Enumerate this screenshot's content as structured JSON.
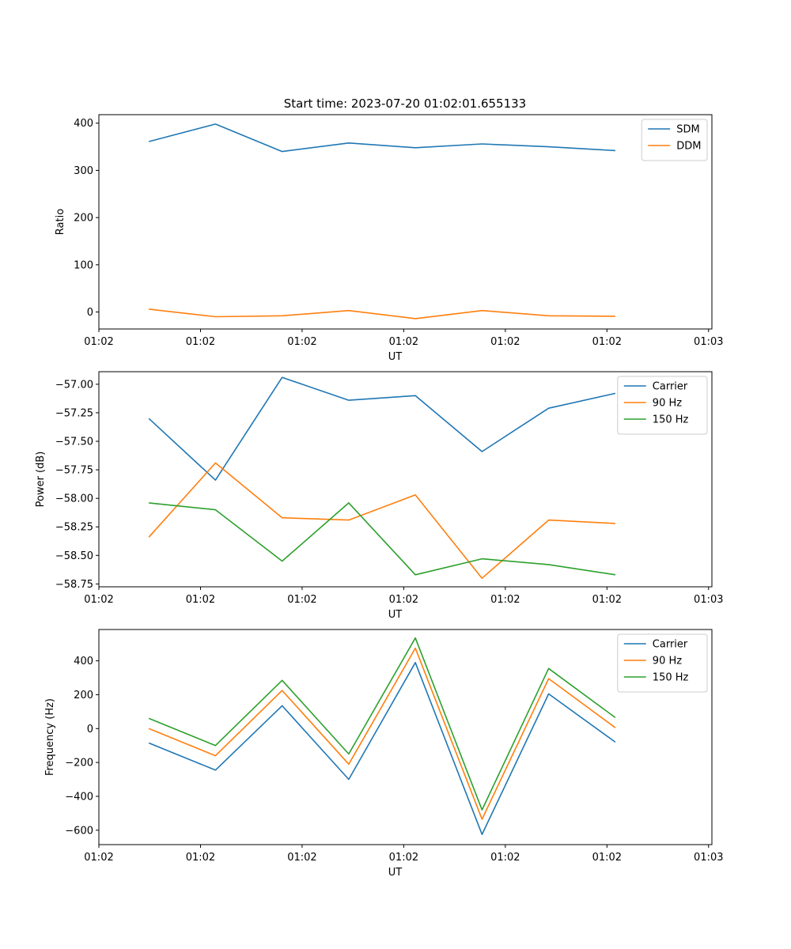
{
  "title": "Start time: 2023-07-20 01:02:01.655133",
  "chart_data": [
    {
      "type": "line",
      "xlabel": "UT",
      "ylabel": "Ratio",
      "x_index_range": [
        -0.75,
        8.45
      ],
      "x_tick_positions": [
        -0.75,
        0.775,
        2.3,
        3.825,
        5.35,
        6.875,
        8.4
      ],
      "x_tick_labels": [
        "01:02",
        "01:02",
        "01:02",
        "01:02",
        "01:02",
        "01:02",
        "01:03"
      ],
      "ylim": [
        -36,
        418
      ],
      "y_ticks": [
        0,
        100,
        200,
        300,
        400
      ],
      "y_tick_labels": [
        "0",
        "100",
        "200",
        "300",
        "400"
      ],
      "legend": "top-right",
      "series": [
        {
          "name": "SDM",
          "color": "#1f77b4",
          "values": [
            361,
            398,
            340,
            358,
            348,
            356,
            350,
            342
          ]
        },
        {
          "name": "DDM",
          "color": "#ff7f0e",
          "values": [
            6,
            -10,
            -8,
            3,
            -14,
            3,
            -8,
            -9
          ]
        }
      ]
    },
    {
      "type": "line",
      "xlabel": "UT",
      "ylabel": "Power (dB)",
      "x_index_range": [
        -0.75,
        8.45
      ],
      "x_tick_positions": [
        -0.75,
        0.775,
        2.3,
        3.825,
        5.35,
        6.875,
        8.4
      ],
      "x_tick_labels": [
        "01:02",
        "01:02",
        "01:02",
        "01:02",
        "01:02",
        "01:02",
        "01:03"
      ],
      "ylim": [
        -58.775,
        -56.89
      ],
      "y_ticks": [
        -58.75,
        -58.5,
        -58.25,
        -58.0,
        -57.75,
        -57.5,
        -57.25,
        -57.0
      ],
      "y_tick_labels": [
        "−58.75",
        "−58.50",
        "−58.25",
        "−58.00",
        "−57.75",
        "−57.50",
        "−57.25",
        "−57.00"
      ],
      "legend": "top-right",
      "series": [
        {
          "name": "Carrier",
          "color": "#1f77b4",
          "values": [
            -57.3,
            -57.84,
            -56.94,
            -57.14,
            -57.1,
            -57.59,
            -57.21,
            -57.08
          ]
        },
        {
          "name": "90 Hz",
          "color": "#ff7f0e",
          "values": [
            -58.34,
            -57.69,
            -58.17,
            -58.19,
            -57.97,
            -58.7,
            -58.19,
            -58.22
          ]
        },
        {
          "name": "150 Hz",
          "color": "#2ca02c",
          "values": [
            -58.04,
            -58.1,
            -58.55,
            -58.04,
            -58.67,
            -58.53,
            -58.58,
            -58.67
          ]
        }
      ]
    },
    {
      "type": "line",
      "xlabel": "UT",
      "ylabel": "Frequency (Hz)",
      "x_index_range": [
        -0.75,
        8.45
      ],
      "x_tick_positions": [
        -0.75,
        0.775,
        2.3,
        3.825,
        5.35,
        6.875,
        8.4
      ],
      "x_tick_labels": [
        "01:02",
        "01:02",
        "01:02",
        "01:02",
        "01:02",
        "01:02",
        "01:03"
      ],
      "ylim": [
        -685,
        585
      ],
      "y_ticks": [
        -600,
        -400,
        -200,
        0,
        200,
        400
      ],
      "y_tick_labels": [
        "−600",
        "−400",
        "−200",
        "0",
        "200",
        "400"
      ],
      "legend": "top-right",
      "series": [
        {
          "name": "Carrier",
          "color": "#1f77b4",
          "values": [
            -85,
            -245,
            135,
            -300,
            390,
            -625,
            205,
            -80
          ]
        },
        {
          "name": "90 Hz",
          "color": "#ff7f0e",
          "values": [
            0,
            -160,
            225,
            -210,
            475,
            -535,
            295,
            5
          ]
        },
        {
          "name": "150 Hz",
          "color": "#2ca02c",
          "values": [
            60,
            -100,
            285,
            -150,
            535,
            -480,
            355,
            65
          ]
        }
      ]
    }
  ]
}
